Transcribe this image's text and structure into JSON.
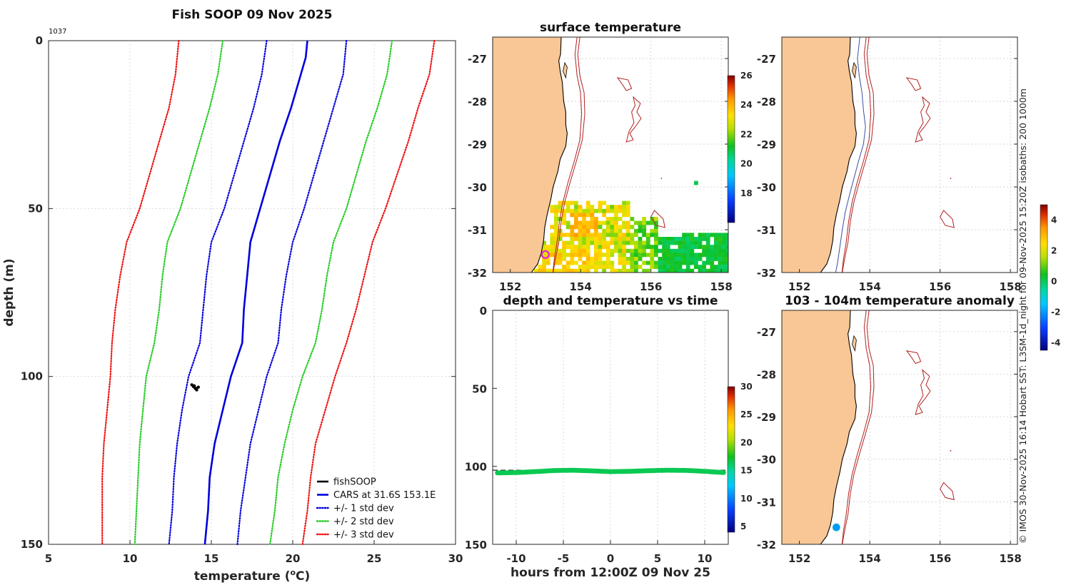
{
  "figure": {
    "side_text": "© IMOS 30-Nov-2025 16:14 Hobart SST: L3SM-1d_night for 09-Nov-2025 15:20Z isobaths: 200  1000m",
    "colors": {
      "land": "#f9c795",
      "isobath_1000": "#b22222",
      "isobath_200": "#3a4fa3",
      "axis": "#262626",
      "grid": "#c8c8c8"
    }
  },
  "chart_data": [
    {
      "id": "profile",
      "type": "line",
      "title": "Fish SOOP 09 Nov 2025",
      "annotation": "1037",
      "xlabel": "temperature (°C)",
      "xlabel_main": "temperature (",
      "xlabel_sup": "o",
      "xlabel_end": "C)",
      "ylabel": "depth (m)",
      "xlim": [
        5,
        30
      ],
      "ylim": [
        0,
        150
      ],
      "xticks": [
        "5",
        "10",
        "15",
        "20",
        "25",
        "30"
      ],
      "yticks": [
        "0",
        "50",
        "100",
        "150"
      ],
      "legend": [
        "fishSOOP",
        "CARS at 31.6S 153.1E",
        "+/- 1 std dev",
        "+/- 2 std dev",
        "+/- 3 std dev"
      ],
      "series": [
        {
          "name": "fishSOOP",
          "color": "#000000",
          "style": "solid",
          "depth": [
            102.5,
            103,
            103.5,
            104,
            103.2,
            102.8,
            103.6
          ],
          "temp": [
            13.8,
            13.9,
            14.0,
            14.1,
            14.2,
            13.95,
            14.05
          ]
        },
        {
          "name": "CARS at 31.6S 153.1E",
          "color": "#0000dd",
          "style": "solid",
          "depth": [
            0,
            5,
            10,
            20,
            30,
            40,
            50,
            60,
            70,
            80,
            90,
            100,
            110,
            120,
            130,
            140,
            150
          ],
          "temp": [
            20.9,
            20.8,
            20.5,
            19.9,
            19.2,
            18.6,
            18.0,
            17.4,
            17.2,
            17.0,
            16.9,
            16.2,
            15.7,
            15.2,
            14.9,
            14.8,
            14.6
          ]
        },
        {
          "name": "+1 std",
          "color": "#0000dd",
          "style": "dot",
          "depth": [
            0,
            10,
            20,
            30,
            40,
            50,
            60,
            70,
            80,
            90,
            100,
            110,
            120,
            130,
            140,
            150
          ],
          "temp": [
            23.3,
            23.1,
            22.5,
            21.9,
            21.3,
            20.7,
            20.0,
            19.6,
            19.3,
            19.1,
            18.4,
            17.9,
            17.4,
            17.1,
            16.8,
            16.6
          ]
        },
        {
          "name": "-1 std",
          "color": "#0000dd",
          "style": "dot",
          "depth": [
            0,
            10,
            20,
            30,
            40,
            50,
            60,
            70,
            80,
            90,
            100,
            110,
            120,
            130,
            140,
            150
          ],
          "temp": [
            18.4,
            18.1,
            17.6,
            17.0,
            16.4,
            15.8,
            15.0,
            14.7,
            14.5,
            14.3,
            13.6,
            13.2,
            12.9,
            12.7,
            12.6,
            12.4
          ]
        },
        {
          "name": "+2 std",
          "color": "#22cc22",
          "style": "dot",
          "depth": [
            0,
            10,
            20,
            30,
            40,
            50,
            60,
            70,
            80,
            90,
            100,
            110,
            120,
            130,
            140,
            150
          ],
          "temp": [
            26.1,
            25.8,
            25.2,
            24.5,
            23.9,
            23.3,
            22.5,
            22.1,
            21.8,
            21.4,
            20.6,
            20.0,
            19.5,
            19.1,
            18.9,
            18.6
          ]
        },
        {
          "name": "-2 std",
          "color": "#22cc22",
          "style": "dot",
          "depth": [
            0,
            10,
            20,
            30,
            40,
            50,
            60,
            70,
            80,
            90,
            100,
            110,
            120,
            130,
            140,
            150
          ],
          "temp": [
            15.7,
            15.4,
            14.9,
            14.3,
            13.7,
            13.1,
            12.3,
            12.0,
            11.8,
            11.5,
            11.0,
            10.8,
            10.6,
            10.5,
            10.4,
            10.3
          ]
        },
        {
          "name": "+3 std",
          "color": "#ee1111",
          "style": "dot",
          "depth": [
            0,
            10,
            20,
            30,
            40,
            50,
            60,
            70,
            80,
            90,
            100,
            110,
            120,
            130,
            140,
            150
          ],
          "temp": [
            28.7,
            28.4,
            27.7,
            27.1,
            26.4,
            25.7,
            24.9,
            24.4,
            23.9,
            23.3,
            22.6,
            22.0,
            21.4,
            21.1,
            20.9,
            20.6
          ]
        },
        {
          "name": "-3 std",
          "color": "#ee1111",
          "style": "dot",
          "depth": [
            0,
            10,
            20,
            30,
            40,
            50,
            60,
            70,
            80,
            90,
            100,
            110,
            120,
            130,
            140,
            150
          ],
          "temp": [
            13.0,
            12.8,
            12.4,
            11.8,
            11.2,
            10.6,
            9.8,
            9.4,
            9.1,
            8.9,
            8.8,
            8.6,
            8.4,
            8.3,
            8.3,
            8.3
          ]
        }
      ]
    },
    {
      "id": "sst_map",
      "type": "heatmap",
      "title": "surface temperature",
      "xticks": [
        "152",
        "154",
        "156",
        "158"
      ],
      "yticks": [
        "-27",
        "-28",
        "-29",
        "-30",
        "-31",
        "-32"
      ],
      "lon_range": [
        151.5,
        158.2
      ],
      "lat_range": [
        -32,
        -26.5
      ],
      "colorbar_ticks": [
        "18",
        "20",
        "22",
        "24",
        "26"
      ],
      "colorbar_range": [
        16,
        26
      ],
      "marker": {
        "lon": 153.0,
        "lat": -31.58,
        "color": "#dd22dd"
      }
    },
    {
      "id": "bathy_map",
      "type": "other",
      "xticks": [
        "152",
        "154",
        "156",
        "158"
      ],
      "yticks": [
        "-27",
        "-28",
        "-29",
        "-30",
        "-31",
        "-32"
      ],
      "lon_range": [
        151.5,
        158.2
      ],
      "lat_range": [
        -32,
        -26.5
      ]
    },
    {
      "id": "depth_time",
      "type": "scatter",
      "title": "depth and temperature vs time",
      "xlabel": "hours from 12:00Z 09 Nov 25",
      "xticks": [
        "-10",
        "-5",
        "0",
        "5",
        "10"
      ],
      "yticks": [
        "0",
        "50",
        "100",
        "150"
      ],
      "xlim": [
        -12.5,
        12.5
      ],
      "ylim": [
        0,
        150
      ],
      "hours": [
        -12,
        -10,
        -8,
        -6,
        -4,
        -2,
        0,
        2,
        4,
        6,
        8,
        10,
        12
      ],
      "depth": [
        104.2,
        104.0,
        103.4,
        102.7,
        102.5,
        102.9,
        103.4,
        103.2,
        102.8,
        102.5,
        102.6,
        103.2,
        104.0
      ],
      "target_depth": 102.5,
      "point_temp": 16.5,
      "colorbar_ticks": [
        "5",
        "10",
        "15",
        "20",
        "25",
        "30"
      ],
      "colorbar_range": [
        4,
        30
      ]
    },
    {
      "id": "anomaly_map",
      "type": "scatter",
      "title": "103 - 104m temperature anomaly",
      "xticks": [
        "152",
        "154",
        "156",
        "158"
      ],
      "yticks": [
        "-27",
        "-28",
        "-29",
        "-30",
        "-31",
        "-32"
      ],
      "lon_range": [
        151.5,
        158.2
      ],
      "lat_range": [
        -32,
        -26.5
      ],
      "anomaly_value": -2.0,
      "marker": {
        "lon": 153.05,
        "lat": -31.6
      },
      "colorbar_ticks": [
        "-4",
        "-2",
        "0",
        "2",
        "4"
      ],
      "colorbar_range": [
        -4.5,
        5
      ]
    }
  ]
}
